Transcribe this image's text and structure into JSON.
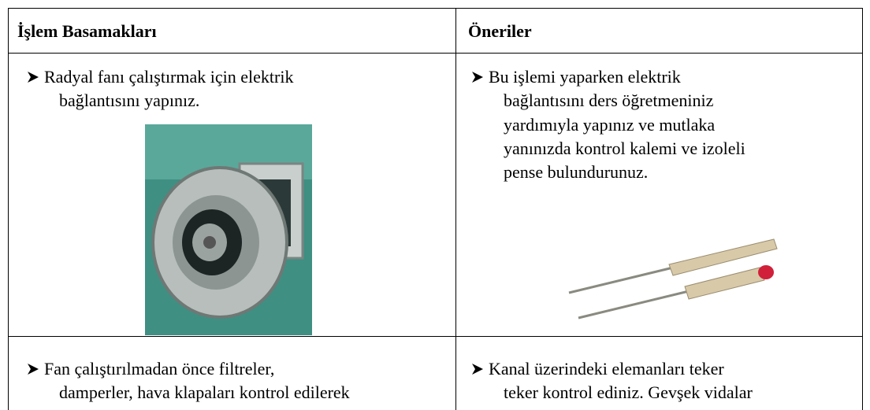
{
  "table": {
    "header": [
      "İşlem Basamakları",
      "Öneriler"
    ],
    "rows": [
      {
        "steps": [
          "Radyal fanı çalıştırmak için elektrik",
          "bağlantısını yapınız."
        ],
        "advice": [
          "Bu işlemi yaparken elektrik",
          "bağlantısını ders öğretmeniniz",
          "yardımıyla yapınız ve mutlaka",
          "yanınızda kontrol kalemi ve izoleli",
          "pense bulundurunuz."
        ]
      },
      {
        "steps": [
          "Fan çalıştırılmadan önce filtreler,",
          "damperler, hava klapaları kontrol edilerek"
        ],
        "advice": [
          "Kanal üzerindeki elemanları teker",
          "teker kontrol ediniz. Gevşek vidalar"
        ]
      }
    ]
  }
}
